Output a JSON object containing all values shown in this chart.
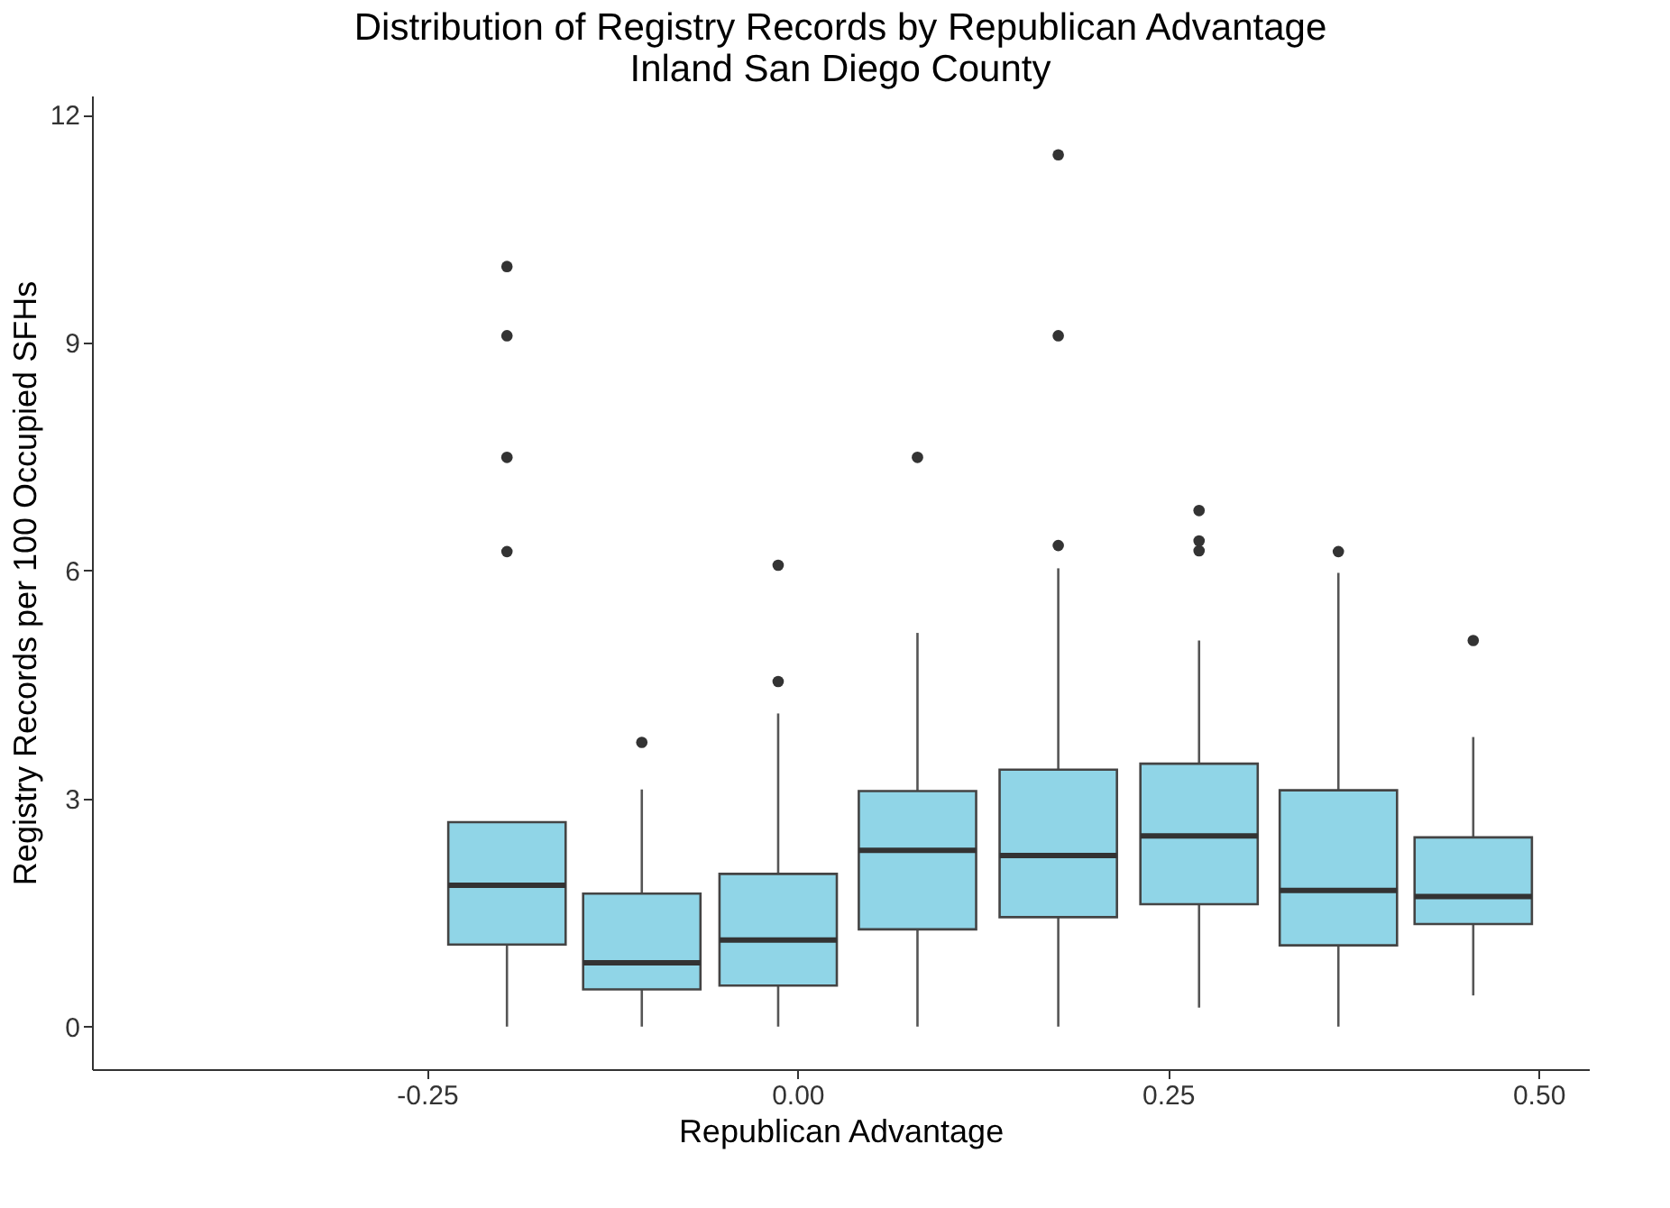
{
  "chart_data": {
    "type": "box",
    "title": [
      "Distribution of Registry Records by Republican Advantage",
      "Inland San Diego County"
    ],
    "xlabel": "Republican Advantage",
    "ylabel": "Registry Records per 100 Occupied SFHs",
    "color": "#90d5e7",
    "x": [
      -0.196,
      -0.105,
      -0.013,
      0.081,
      0.176,
      0.271,
      0.365,
      0.456
    ],
    "boxes": [
      {
        "low": 0,
        "q1": 1.08,
        "median": 1.86,
        "q3": 2.69,
        "high": 2.69,
        "outliers": [
          6.25,
          7.49,
          9.09,
          10.0
        ]
      },
      {
        "low": 0,
        "q1": 0.49,
        "median": 0.84,
        "q3": 1.75,
        "high": 3.12,
        "outliers": [
          3.74
        ]
      },
      {
        "low": 0,
        "q1": 0.54,
        "median": 1.14,
        "q3": 2.01,
        "high": 4.12,
        "outliers": [
          4.54,
          6.07
        ]
      },
      {
        "low": 0,
        "q1": 1.28,
        "median": 2.32,
        "q3": 3.1,
        "high": 5.18,
        "outliers": [
          7.49
        ]
      },
      {
        "low": 0,
        "q1": 1.44,
        "median": 2.25,
        "q3": 3.38,
        "high": 6.03,
        "outliers": [
          6.33,
          9.09,
          11.47
        ]
      },
      {
        "low": 0.25,
        "q1": 1.61,
        "median": 2.51,
        "q3": 3.46,
        "high": 5.08,
        "outliers": [
          6.26,
          6.39,
          6.79
        ]
      },
      {
        "low": 0,
        "q1": 1.07,
        "median": 1.79,
        "q3": 3.11,
        "high": 5.97,
        "outliers": [
          6.25
        ]
      },
      {
        "low": 0.41,
        "q1": 1.35,
        "median": 1.71,
        "q3": 2.49,
        "high": 3.81,
        "outliers": [
          5.08
        ]
      }
    ],
    "xlim": [
      -0.476,
      0.534
    ],
    "ylim": [
      -0.56,
      12.25
    ],
    "xticks": [
      {
        "value": -0.25,
        "label": "-0.25"
      },
      {
        "value": 0,
        "label": "0.00"
      },
      {
        "value": 0.25,
        "label": "0.25"
      },
      {
        "value": 0.5,
        "label": "0.50"
      }
    ],
    "yticks": [
      0,
      3,
      6,
      9,
      12
    ],
    "grid": false
  }
}
